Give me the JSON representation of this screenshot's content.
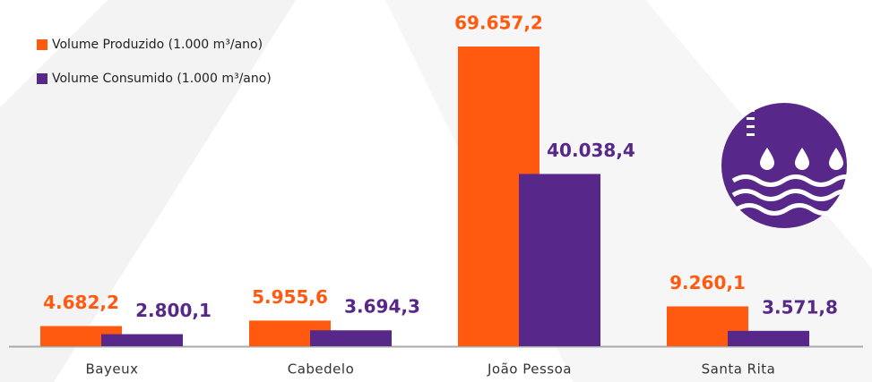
{
  "chart_data": {
    "type": "bar",
    "categories": [
      "Bayeux",
      "Cabedelo",
      "João Pessoa",
      "Santa Rita"
    ],
    "series": [
      {
        "name": "Volume Produzido (1.000 m³/ano)",
        "color": "#ff5a0f",
        "values": [
          4682.2,
          5955.6,
          69657.2,
          9260.1
        ],
        "value_labels": [
          "4.682,2",
          "5.955,6",
          "69.657,2",
          "9.260,1"
        ]
      },
      {
        "name": "Volume Consumido (1.000 m³/ano)",
        "color": "#57278a",
        "values": [
          2800.1,
          3694.3,
          40038.4,
          3571.8
        ],
        "value_labels": [
          "2.800,1",
          "3.694,3",
          "40.038,4",
          "3.571,8"
        ]
      }
    ]
  }
}
